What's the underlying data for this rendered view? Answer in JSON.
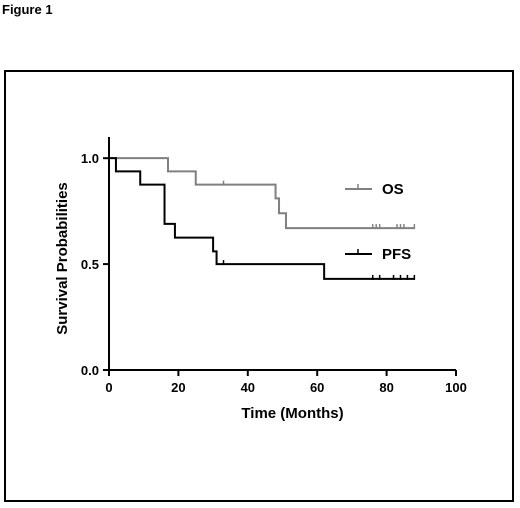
{
  "figure_label": "Figure 1",
  "chart_data": {
    "type": "line",
    "title": "",
    "xlabel": "Time (Months)",
    "ylabel": "Survival Probabilities",
    "xlim": [
      0,
      100
    ],
    "ylim": [
      0,
      1.1
    ],
    "x_ticks": [
      0,
      20,
      40,
      60,
      80,
      100
    ],
    "x_tick_labels": [
      "0",
      "20",
      "40",
      "60",
      "80",
      "100"
    ],
    "y_ticks": [
      0,
      0.5,
      1.0
    ],
    "y_tick_labels": [
      "0.0",
      "0.5",
      "1.0"
    ],
    "grid": false,
    "legend_position": "right",
    "step": true,
    "series": [
      {
        "name": "OS",
        "color": "#808080",
        "steps": [
          [
            0,
            1.0
          ],
          [
            17,
            0.938
          ],
          [
            25,
            0.875
          ],
          [
            48,
            0.81
          ],
          [
            49,
            0.74
          ],
          [
            51,
            0.67
          ],
          [
            88,
            0.67
          ]
        ],
        "censored": [
          [
            33,
            0.875
          ],
          [
            76,
            0.67
          ],
          [
            77,
            0.67
          ],
          [
            78,
            0.67
          ],
          [
            83,
            0.67
          ],
          [
            84,
            0.67
          ],
          [
            85,
            0.67
          ],
          [
            88,
            0.67
          ]
        ]
      },
      {
        "name": "PFS",
        "color": "#000000",
        "steps": [
          [
            0,
            1.0
          ],
          [
            2,
            0.938
          ],
          [
            9,
            0.875
          ],
          [
            16,
            0.69
          ],
          [
            19,
            0.625
          ],
          [
            30,
            0.56
          ],
          [
            31,
            0.5
          ],
          [
            62,
            0.43
          ],
          [
            88,
            0.43
          ]
        ],
        "censored": [
          [
            33,
            0.5
          ],
          [
            76,
            0.43
          ],
          [
            78,
            0.43
          ],
          [
            82,
            0.43
          ],
          [
            84,
            0.43
          ],
          [
            86,
            0.43
          ],
          [
            88,
            0.43
          ]
        ]
      }
    ]
  }
}
